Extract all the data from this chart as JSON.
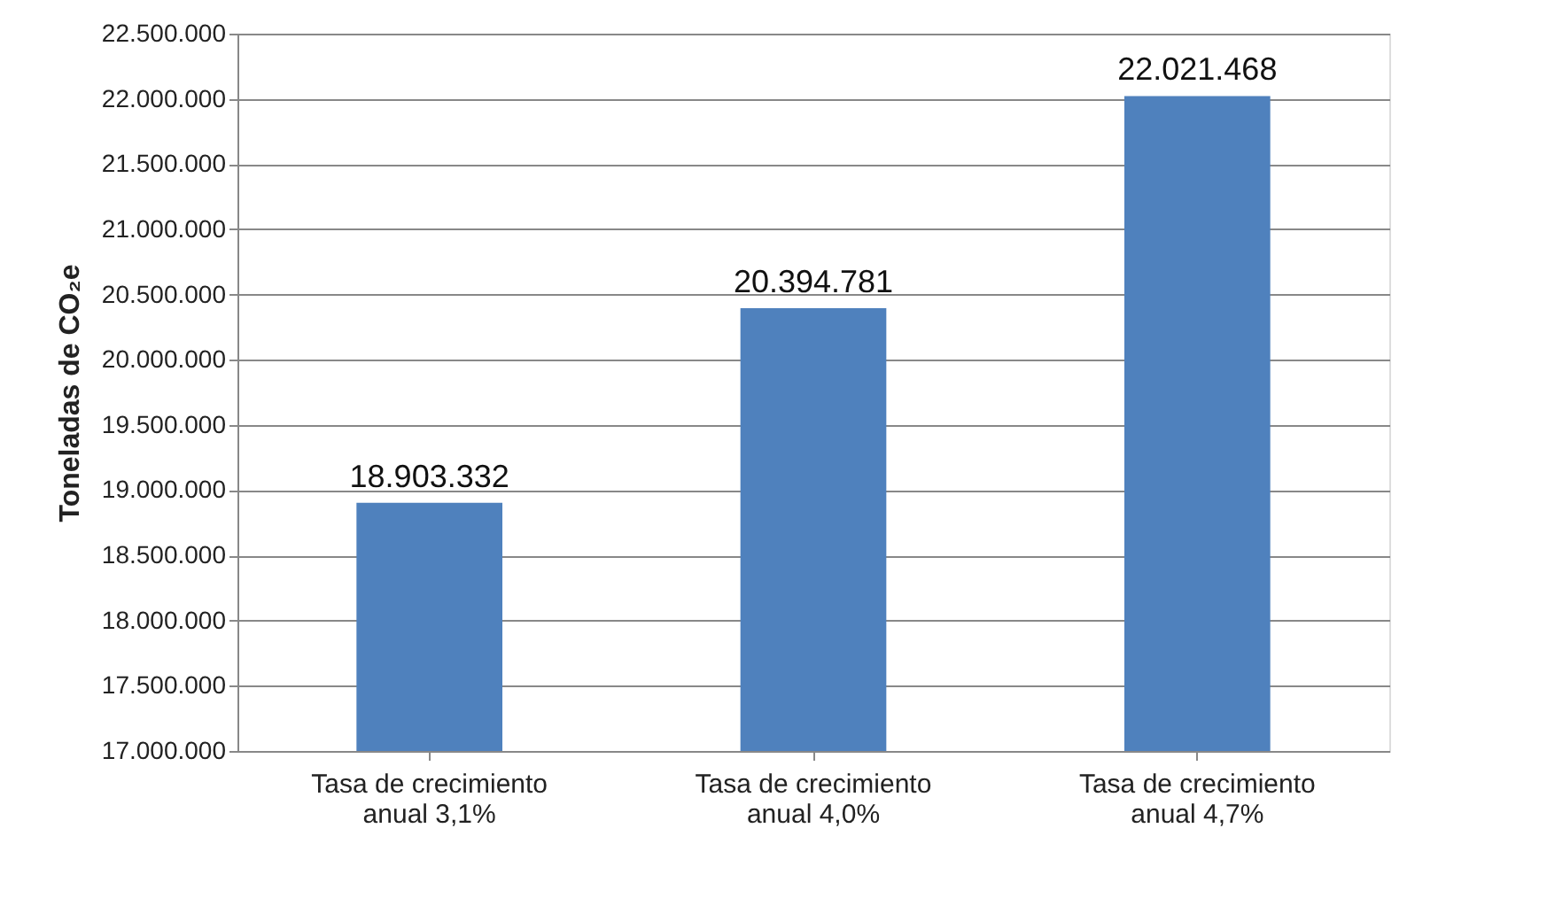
{
  "chart_data": {
    "type": "bar",
    "ylabel": "Toneladas de CO₂e",
    "categories": [
      "Tasa de crecimiento\nanual 3,1%",
      "Tasa de crecimiento\nanual 4,0%",
      "Tasa de crecimiento\nanual 4,7%"
    ],
    "values": [
      18903332,
      20394781,
      22021468
    ],
    "value_labels": [
      "18.903.332",
      "20.394.781",
      "22.021.468"
    ],
    "color": "#4f81bd",
    "ylim": [
      17000000,
      22500000
    ],
    "yticks": [
      {
        "value": 17000000,
        "label": "17.000.000"
      },
      {
        "value": 17500000,
        "label": "17.500.000"
      },
      {
        "value": 18000000,
        "label": "18.000.000"
      },
      {
        "value": 18500000,
        "label": "18.500.000"
      },
      {
        "value": 19000000,
        "label": "19.000.000"
      },
      {
        "value": 19500000,
        "label": "19.500.000"
      },
      {
        "value": 20000000,
        "label": "20.000.000"
      },
      {
        "value": 20500000,
        "label": "20.500.000"
      },
      {
        "value": 21000000,
        "label": "21.000.000"
      },
      {
        "value": 21500000,
        "label": "21.500.000"
      },
      {
        "value": 22000000,
        "label": "22.000.000"
      },
      {
        "value": 22500000,
        "label": "22.500.000"
      }
    ],
    "grid": "y"
  }
}
